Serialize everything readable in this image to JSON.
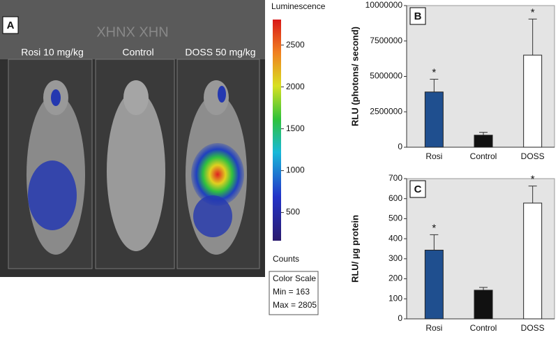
{
  "panel_a": {
    "label": "A",
    "plate_text": "XHNX XHN",
    "groups": [
      "Rosi 10 mg/kg",
      "Control",
      "DOSS 50 mg/kg"
    ],
    "colorbar": {
      "title": "Luminescence",
      "unit": "Counts",
      "lim": [
        163,
        2805
      ],
      "ticks": [
        500,
        1000,
        1500,
        2000,
        2500
      ],
      "scale_title": "Color Scale",
      "min_text": "Min = 163",
      "max_text": "Max = 2805"
    }
  },
  "chart_data": [
    {
      "type": "bar",
      "label": "B",
      "y_label": "RLU (photons/ second)",
      "categories": [
        "Rosi",
        "Control",
        "DOSS"
      ],
      "values": [
        3900000,
        850000,
        6500000
      ],
      "errors": [
        900000,
        200000,
        2550000
      ],
      "colors": [
        "#1f4f8f",
        "#111111",
        "#ffffff"
      ],
      "significance": [
        "*",
        null,
        "*"
      ],
      "ylim": [
        0,
        10000000
      ],
      "yticks": [
        0,
        2500000,
        5000000,
        7500000,
        10000000
      ]
    },
    {
      "type": "bar",
      "label": "C",
      "y_label": "RLU/ µg protein",
      "categories": [
        "Rosi",
        "Control",
        "DOSS"
      ],
      "values": [
        343,
        143,
        578
      ],
      "errors": [
        77,
        14,
        85
      ],
      "colors": [
        "#1f4f8f",
        "#111111",
        "#ffffff"
      ],
      "significance": [
        "*",
        null,
        "*"
      ],
      "ylim": [
        0,
        700
      ],
      "yticks": [
        0,
        100,
        200,
        300,
        400,
        500,
        600,
        700
      ]
    }
  ]
}
